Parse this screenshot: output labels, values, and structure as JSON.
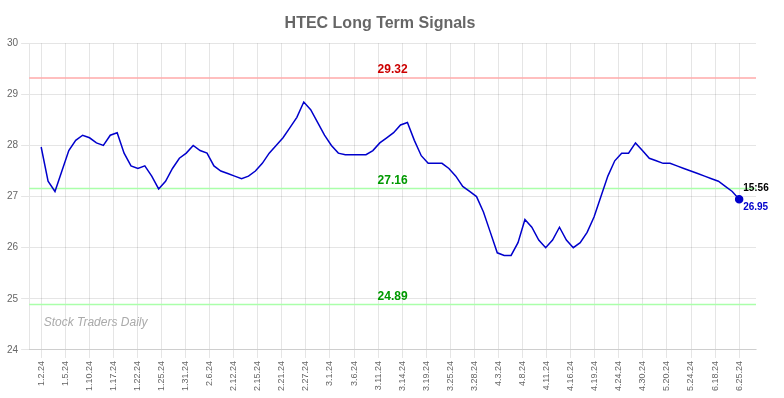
{
  "chart_data": {
    "type": "line",
    "title": "HTEC Long Term Signals",
    "color": "#0000cc",
    "values": [
      27.97,
      27.3,
      27.1,
      27.5,
      27.9,
      28.1,
      28.2,
      28.15,
      28.05,
      28.0,
      28.2,
      28.25,
      27.85,
      27.6,
      27.55,
      27.6,
      27.4,
      27.15,
      27.3,
      27.55,
      27.75,
      27.85,
      28.0,
      27.9,
      27.85,
      27.6,
      27.5,
      27.45,
      27.4,
      27.35,
      27.4,
      27.5,
      27.65,
      27.85,
      28.0,
      28.15,
      28.35,
      28.55,
      28.85,
      28.7,
      28.45,
      28.2,
      28.0,
      27.85,
      27.82,
      27.82,
      27.82,
      27.82,
      27.9,
      28.05,
      28.15,
      28.25,
      28.4,
      28.45,
      28.1,
      27.8,
      27.65,
      27.65,
      27.65,
      27.55,
      27.4,
      27.2,
      27.1,
      27.0,
      26.7,
      26.3,
      25.9,
      25.85,
      25.85,
      26.1,
      26.55,
      26.4,
      26.15,
      26.0,
      26.15,
      26.4,
      26.15,
      26.0,
      26.1,
      26.3,
      26.6,
      27.0,
      27.4,
      27.7,
      27.85,
      27.85,
      28.05,
      27.9,
      27.75,
      27.7,
      27.65,
      27.65,
      27.6,
      27.55,
      27.5,
      27.45,
      27.4,
      27.35,
      27.3,
      27.2,
      27.1,
      26.95
    ],
    "xlim": [
      -0.5,
      29.7
    ],
    "xticks": [
      {
        "value": 0,
        "label": "1.2.24"
      },
      {
        "value": 1,
        "label": "1.5.24"
      },
      {
        "value": 2,
        "label": "1.10.24"
      },
      {
        "value": 3,
        "label": "1.17.24"
      },
      {
        "value": 4,
        "label": "1.22.24"
      },
      {
        "value": 5,
        "label": "1.25.24"
      },
      {
        "value": 6,
        "label": "1.31.24"
      },
      {
        "value": 7,
        "label": "2.6.24"
      },
      {
        "value": 8,
        "label": "2.12.24"
      },
      {
        "value": 9,
        "label": "2.15.24"
      },
      {
        "value": 10,
        "label": "2.21.24"
      },
      {
        "value": 11,
        "label": "2.27.24"
      },
      {
        "value": 12,
        "label": "3.1.24"
      },
      {
        "value": 13,
        "label": "3.6.24"
      },
      {
        "value": 14,
        "label": "3.11.24"
      },
      {
        "value": 15,
        "label": "3.14.24"
      },
      {
        "value": 16,
        "label": "3.19.24"
      },
      {
        "value": 17,
        "label": "3.25.24"
      },
      {
        "value": 18,
        "label": "3.28.24"
      },
      {
        "value": 19,
        "label": "4.3.24"
      },
      {
        "value": 20,
        "label": "4.8.24"
      },
      {
        "value": 21,
        "label": "4.11.24"
      },
      {
        "value": 22,
        "label": "4.16.24"
      },
      {
        "value": 23,
        "label": "4.19.24"
      },
      {
        "value": 24,
        "label": "4.24.24"
      },
      {
        "value": 25,
        "label": "4.30.24"
      },
      {
        "value": 26,
        "label": "5.20.24"
      },
      {
        "value": 27,
        "label": "5.24.24"
      },
      {
        "value": 28,
        "label": "6.18.24"
      },
      {
        "value": 29,
        "label": "6.25.24"
      }
    ],
    "ylim": [
      24,
      30
    ],
    "yticks": [
      24,
      25,
      26,
      27,
      28,
      29,
      30
    ],
    "grid": true,
    "hlines": [
      {
        "value": 29.32,
        "label": "29.32",
        "color": "#ffaaaa",
        "label_color": "#cc0000"
      },
      {
        "value": 27.16,
        "label": "27.16",
        "color": "#aaffaa",
        "label_color": "#009900"
      },
      {
        "value": 24.89,
        "label": "24.89",
        "color": "#aaffaa",
        "label_color": "#009900"
      }
    ],
    "last_point_labels": [
      "15:56",
      "26.95"
    ],
    "watermark": "Stock Traders Daily"
  }
}
